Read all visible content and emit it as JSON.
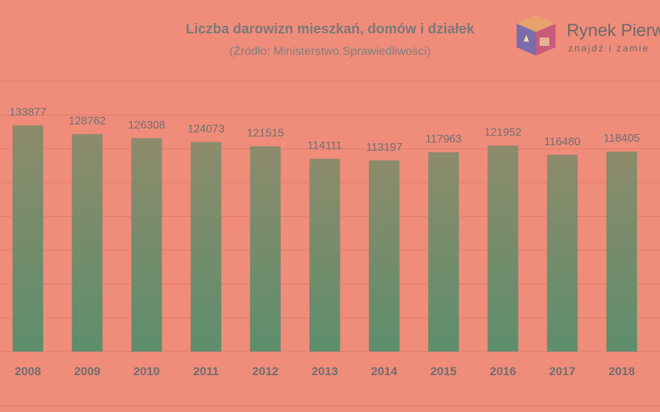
{
  "chart_data": {
    "type": "bar",
    "title": "Liczba darowizn mieszkań, domów i działek",
    "subtitle": "(Źródło: Ministerstwo Sprawiedliwości)",
    "categories": [
      "2008",
      "2009",
      "2010",
      "2011",
      "2012",
      "2013",
      "2014",
      "2015",
      "2016",
      "2017",
      "2018"
    ],
    "values": [
      133877,
      128762,
      126308,
      124073,
      121515,
      114111,
      113197,
      117963,
      121952,
      116480,
      118405
    ],
    "value_labels": [
      "133877",
      "128762",
      "126308",
      "124073",
      "121515",
      "114111",
      "113197",
      "117963",
      "121952",
      "116480",
      "118405"
    ],
    "ylim": [
      0,
      160000
    ],
    "grid": true,
    "colors": {
      "bar_top": "#8d8b6b",
      "bar_bottom": "#5d8e6c",
      "background": "#f08c7a"
    }
  },
  "logo": {
    "name": "Rynek Pierw",
    "tagline": "znajdź i zamie"
  }
}
